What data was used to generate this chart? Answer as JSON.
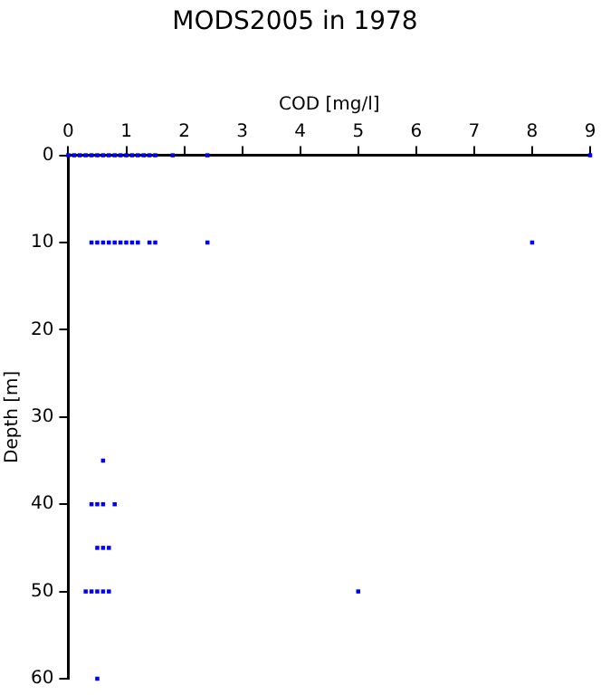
{
  "chart_data": {
    "type": "scatter",
    "title": "MODS2005 in 1978",
    "xlabel": "COD [mg/l]",
    "ylabel": "Depth [m]",
    "series": [
      {
        "color": "#0000ff",
        "x": [
          0,
          0.1,
          0.2,
          0.3,
          0.4,
          0.5,
          0.6,
          0.7,
          0.8,
          0.9,
          1.0,
          1.1,
          1.2,
          1.3,
          1.4,
          1.5,
          1.8,
          2.4,
          9,
          0.4,
          0.5,
          0.6,
          0.7,
          0.8,
          0.9,
          1.0,
          1.1,
          1.2,
          1.4,
          1.5,
          2.4,
          8,
          0.6,
          0.4,
          0.5,
          0.6,
          0.8,
          0.5,
          0.6,
          0.7,
          0.3,
          0.4,
          0.5,
          0.6,
          0.7,
          5,
          0.5
        ],
        "values": [
          0,
          0,
          0,
          0,
          0,
          0,
          0,
          0,
          0,
          0,
          0,
          0,
          0,
          0,
          0,
          0,
          0,
          0,
          0,
          10,
          10,
          10,
          10,
          10,
          10,
          10,
          10,
          10,
          10,
          10,
          10,
          10,
          35,
          40,
          40,
          40,
          40,
          45,
          45,
          45,
          50,
          50,
          50,
          50,
          50,
          50,
          60
        ]
      }
    ],
    "xlim": [
      0,
      9
    ],
    "xticks": [
      0,
      1,
      2,
      3,
      4,
      5,
      6,
      7,
      8,
      9
    ],
    "ylim": [
      60,
      0
    ],
    "yticks": [
      0,
      10,
      20,
      30,
      40,
      50,
      60
    ],
    "grid": false,
    "legend": false,
    "marker": "square"
  }
}
